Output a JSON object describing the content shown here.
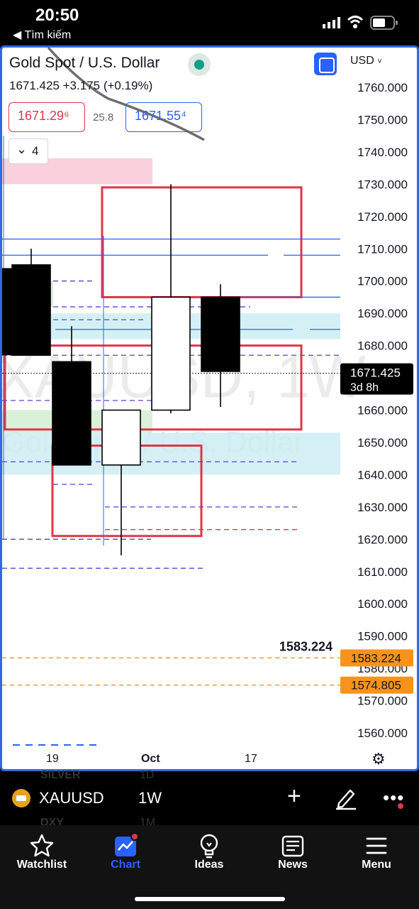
{
  "status_bar": {
    "time": "20:50",
    "back_label": "◀ Tìm kiếm",
    "signal_icon": "cellular-signal-icon",
    "wifi_icon": "wifi-icon",
    "battery_icon": "battery-icon"
  },
  "chart_header": {
    "symbol_title": "Gold Spot / U.S. Dollar",
    "price_line": "1671.425  +3.175 (+0.19%)",
    "bid": "1671.29⁶",
    "spread": "25.8",
    "ask": "1671.55⁴",
    "indicators_count": "4",
    "currency": "USD",
    "watermark": "XAUUSD, 1W",
    "watermark_sub": "Gold Spot / U.S. Dollar"
  },
  "chart_data": {
    "type": "candlestick",
    "y_ticks": [
      "1760.000",
      "1750.000",
      "1740.000",
      "1730.000",
      "1720.000",
      "1710.000",
      "1700.000",
      "1690.000",
      "1680.000",
      "1670.000",
      "1660.000",
      "1650.000",
      "1640.000",
      "1630.000",
      "1620.000",
      "1610.000",
      "1600.000",
      "1590.000",
      "1580.000",
      "1570.000",
      "1560.000"
    ],
    "ylim": [
      1555,
      1765
    ],
    "x_labels": [
      "19",
      "Oct",
      "17"
    ],
    "current_price": "1671.425",
    "countdown": "3d 8h",
    "level_labels": [
      "1583.224",
      "1574.805"
    ],
    "level_annotation": "1583.224",
    "candles": [
      {
        "open": 1705,
        "high": 1710,
        "low": 1677,
        "close": 1677,
        "bull": false
      },
      {
        "open": 1675,
        "high": 1686,
        "low": 1643,
        "close": 1643,
        "bull": false
      },
      {
        "open": 1643,
        "high": 1658,
        "low": 1615,
        "close": 1660,
        "bull": true
      },
      {
        "open": 1660,
        "high": 1730,
        "low": 1659,
        "close": 1695,
        "bull": true
      },
      {
        "open": 1695,
        "high": 1699,
        "low": 1661,
        "close": 1672,
        "bull": false
      }
    ]
  },
  "symbol_bar": {
    "symbol": "XAUUSD",
    "timeframe": "1W",
    "ghost_rows": [
      {
        "sym": "SILVER",
        "tf": "1D"
      },
      {
        "sym": "DXY",
        "tf": "1M"
      }
    ],
    "add_icon": "plus-icon",
    "draw_icon": "pen-icon",
    "more_icon": "more-dots-icon"
  },
  "tab_bar": {
    "tabs": [
      {
        "label": "Watchlist",
        "icon": "star-icon"
      },
      {
        "label": "Chart",
        "icon": "chart-icon"
      },
      {
        "label": "Ideas",
        "icon": "lightbulb-icon"
      },
      {
        "label": "News",
        "icon": "newspaper-icon"
      },
      {
        "label": "Menu",
        "icon": "hamburger-icon"
      }
    ],
    "active": "Chart"
  },
  "colors": {
    "accent": "#2962ff",
    "bear_candle": "#000000",
    "bull_candle": "#ffffff",
    "zone_red": "#e0364a",
    "level_orange": "#f7931a",
    "line_blue": "#2962ff",
    "dash_purple": "#5b3fd4"
  }
}
